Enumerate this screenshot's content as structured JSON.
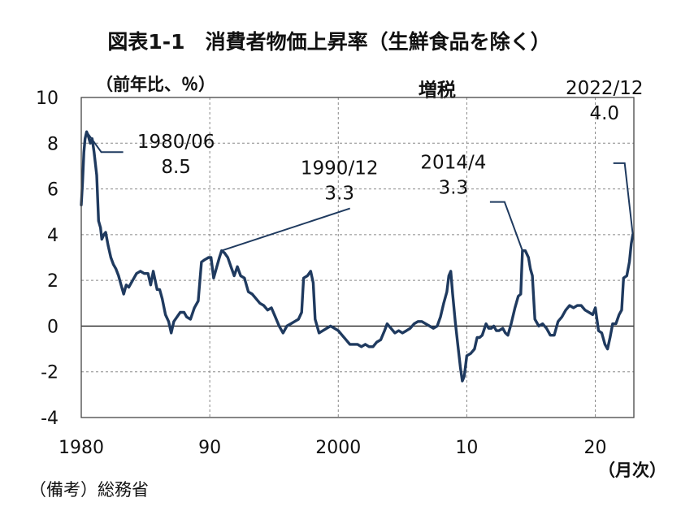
{
  "chart_data": {
    "type": "line",
    "title": "図表1-1　消費者物価上昇率（生鮮食品を除く）",
    "y_unit_label": "（前年比、％）",
    "x_unit_label": "（月次）",
    "source_note": "（備考）総務省",
    "ylim": [
      -4,
      10
    ],
    "yticks": [
      "10",
      "8",
      "6",
      "4",
      "2",
      "0",
      "-2",
      "-4"
    ],
    "xlim": [
      1980,
      2023
    ],
    "xticks": [
      {
        "year": 1980,
        "label": "1980"
      },
      {
        "year": 1990,
        "label": "90"
      },
      {
        "year": 2000,
        "label": "2000"
      },
      {
        "year": 2010,
        "label": "10"
      },
      {
        "year": 2020,
        "label": "20"
      }
    ],
    "grid": "dashed",
    "line_color": "#1f3a5f",
    "series": [
      {
        "name": "",
        "points": [
          [
            1980.0,
            5.3
          ],
          [
            1980.1,
            6.3
          ],
          [
            1980.2,
            7.6
          ],
          [
            1980.3,
            8.2
          ],
          [
            1980.42,
            8.5
          ],
          [
            1980.55,
            8.3
          ],
          [
            1980.7,
            8.0
          ],
          [
            1980.85,
            8.2
          ],
          [
            1981.0,
            7.6
          ],
          [
            1981.2,
            6.6
          ],
          [
            1981.35,
            4.6
          ],
          [
            1981.5,
            4.3
          ],
          [
            1981.6,
            3.8
          ],
          [
            1981.75,
            4.0
          ],
          [
            1981.9,
            4.1
          ],
          [
            1982.1,
            3.5
          ],
          [
            1982.3,
            3.0
          ],
          [
            1982.5,
            2.7
          ],
          [
            1982.7,
            2.5
          ],
          [
            1982.9,
            2.2
          ],
          [
            1983.1,
            1.8
          ],
          [
            1983.3,
            1.4
          ],
          [
            1983.5,
            1.8
          ],
          [
            1983.7,
            1.7
          ],
          [
            1984.0,
            2.0
          ],
          [
            1984.3,
            2.3
          ],
          [
            1984.6,
            2.4
          ],
          [
            1984.9,
            2.3
          ],
          [
            1985.2,
            2.3
          ],
          [
            1985.4,
            1.8
          ],
          [
            1985.6,
            2.4
          ],
          [
            1985.75,
            2.0
          ],
          [
            1985.9,
            1.6
          ],
          [
            1986.1,
            1.6
          ],
          [
            1986.3,
            1.2
          ],
          [
            1986.55,
            0.5
          ],
          [
            1986.8,
            0.2
          ],
          [
            1987.0,
            -0.3
          ],
          [
            1987.2,
            0.2
          ],
          [
            1987.45,
            0.4
          ],
          [
            1987.7,
            0.6
          ],
          [
            1988.0,
            0.6
          ],
          [
            1988.2,
            0.4
          ],
          [
            1988.5,
            0.3
          ],
          [
            1988.8,
            0.8
          ],
          [
            1989.1,
            1.1
          ],
          [
            1989.35,
            2.8
          ],
          [
            1989.6,
            2.9
          ],
          [
            1989.9,
            3.0
          ],
          [
            1990.1,
            3.0
          ],
          [
            1990.3,
            2.1
          ],
          [
            1990.55,
            2.6
          ],
          [
            1990.75,
            3.0
          ],
          [
            1990.92,
            3.3
          ],
          [
            1991.15,
            3.2
          ],
          [
            1991.4,
            3.0
          ],
          [
            1991.65,
            2.6
          ],
          [
            1991.9,
            2.2
          ],
          [
            1992.15,
            2.6
          ],
          [
            1992.4,
            2.2
          ],
          [
            1992.7,
            2.1
          ],
          [
            1993.0,
            1.5
          ],
          [
            1993.3,
            1.4
          ],
          [
            1993.6,
            1.2
          ],
          [
            1993.9,
            1.0
          ],
          [
            1994.2,
            0.9
          ],
          [
            1994.5,
            0.7
          ],
          [
            1994.8,
            0.8
          ],
          [
            1995.1,
            0.4
          ],
          [
            1995.4,
            0.0
          ],
          [
            1995.7,
            -0.3
          ],
          [
            1996.0,
            0.0
          ],
          [
            1996.3,
            0.1
          ],
          [
            1996.6,
            0.2
          ],
          [
            1996.9,
            0.3
          ],
          [
            1997.15,
            0.6
          ],
          [
            1997.3,
            2.1
          ],
          [
            1997.6,
            2.2
          ],
          [
            1997.85,
            2.4
          ],
          [
            1998.05,
            1.9
          ],
          [
            1998.2,
            0.3
          ],
          [
            1998.5,
            -0.3
          ],
          [
            1998.8,
            -0.2
          ],
          [
            1999.1,
            -0.1
          ],
          [
            1999.4,
            0.0
          ],
          [
            1999.7,
            -0.1
          ],
          [
            2000.0,
            -0.2
          ],
          [
            2000.3,
            -0.4
          ],
          [
            2000.6,
            -0.6
          ],
          [
            2000.9,
            -0.8
          ],
          [
            2001.2,
            -0.8
          ],
          [
            2001.5,
            -0.8
          ],
          [
            2001.8,
            -0.9
          ],
          [
            2002.1,
            -0.8
          ],
          [
            2002.4,
            -0.9
          ],
          [
            2002.7,
            -0.9
          ],
          [
            2003.0,
            -0.7
          ],
          [
            2003.3,
            -0.6
          ],
          [
            2003.6,
            -0.2
          ],
          [
            2003.8,
            0.1
          ],
          [
            2004.1,
            -0.1
          ],
          [
            2004.4,
            -0.3
          ],
          [
            2004.7,
            -0.2
          ],
          [
            2005.0,
            -0.3
          ],
          [
            2005.3,
            -0.2
          ],
          [
            2005.6,
            -0.1
          ],
          [
            2005.9,
            0.1
          ],
          [
            2006.2,
            0.2
          ],
          [
            2006.5,
            0.2
          ],
          [
            2006.8,
            0.1
          ],
          [
            2007.1,
            0.0
          ],
          [
            2007.4,
            -0.1
          ],
          [
            2007.7,
            0.0
          ],
          [
            2007.95,
            0.4
          ],
          [
            2008.2,
            1.0
          ],
          [
            2008.45,
            1.5
          ],
          [
            2008.6,
            2.2
          ],
          [
            2008.75,
            2.4
          ],
          [
            2008.9,
            1.4
          ],
          [
            2009.1,
            0.2
          ],
          [
            2009.3,
            -0.8
          ],
          [
            2009.5,
            -1.8
          ],
          [
            2009.65,
            -2.4
          ],
          [
            2009.8,
            -2.2
          ],
          [
            2010.0,
            -1.3
          ],
          [
            2010.3,
            -1.2
          ],
          [
            2010.6,
            -1.0
          ],
          [
            2010.8,
            -0.5
          ],
          [
            2011.0,
            -0.5
          ],
          [
            2011.2,
            -0.4
          ],
          [
            2011.5,
            0.1
          ],
          [
            2011.7,
            -0.1
          ],
          [
            2011.9,
            -0.1
          ],
          [
            2012.1,
            0.0
          ],
          [
            2012.3,
            -0.2
          ],
          [
            2012.5,
            -0.2
          ],
          [
            2012.8,
            -0.1
          ],
          [
            2013.0,
            -0.3
          ],
          [
            2013.2,
            -0.4
          ],
          [
            2013.45,
            0.1
          ],
          [
            2013.75,
            0.8
          ],
          [
            2014.0,
            1.3
          ],
          [
            2014.2,
            1.4
          ],
          [
            2014.33,
            3.3
          ],
          [
            2014.55,
            3.3
          ],
          [
            2014.8,
            3.0
          ],
          [
            2014.95,
            2.5
          ],
          [
            2015.1,
            2.2
          ],
          [
            2015.3,
            0.3
          ],
          [
            2015.6,
            0.0
          ],
          [
            2015.9,
            0.1
          ],
          [
            2016.2,
            -0.1
          ],
          [
            2016.5,
            -0.4
          ],
          [
            2016.8,
            -0.4
          ],
          [
            2017.1,
            0.2
          ],
          [
            2017.4,
            0.4
          ],
          [
            2017.7,
            0.7
          ],
          [
            2018.0,
            0.9
          ],
          [
            2018.3,
            0.8
          ],
          [
            2018.6,
            0.9
          ],
          [
            2018.9,
            0.9
          ],
          [
            2019.2,
            0.7
          ],
          [
            2019.5,
            0.6
          ],
          [
            2019.8,
            0.5
          ],
          [
            2020.0,
            0.8
          ],
          [
            2020.25,
            -0.2
          ],
          [
            2020.5,
            -0.3
          ],
          [
            2020.75,
            -0.8
          ],
          [
            2020.95,
            -1.0
          ],
          [
            2021.15,
            -0.5
          ],
          [
            2021.35,
            0.1
          ],
          [
            2021.6,
            0.1
          ],
          [
            2021.85,
            0.5
          ],
          [
            2022.05,
            0.7
          ],
          [
            2022.2,
            2.1
          ],
          [
            2022.45,
            2.2
          ],
          [
            2022.65,
            2.8
          ],
          [
            2022.8,
            3.6
          ],
          [
            2022.92,
            4.0
          ]
        ]
      }
    ],
    "annotations": [
      {
        "date": "1980/06",
        "value": "8.5",
        "x": 1980.42,
        "y": 8.5
      },
      {
        "date": "1990/12",
        "value": "3.3",
        "x": 1990.92,
        "y": 3.3
      },
      {
        "event": "増税",
        "date": "2014/4",
        "value": "3.3",
        "x": 2014.33,
        "y": 3.3
      },
      {
        "date": "2022/12",
        "value": "4.0",
        "x": 2022.92,
        "y": 4.0
      }
    ]
  }
}
